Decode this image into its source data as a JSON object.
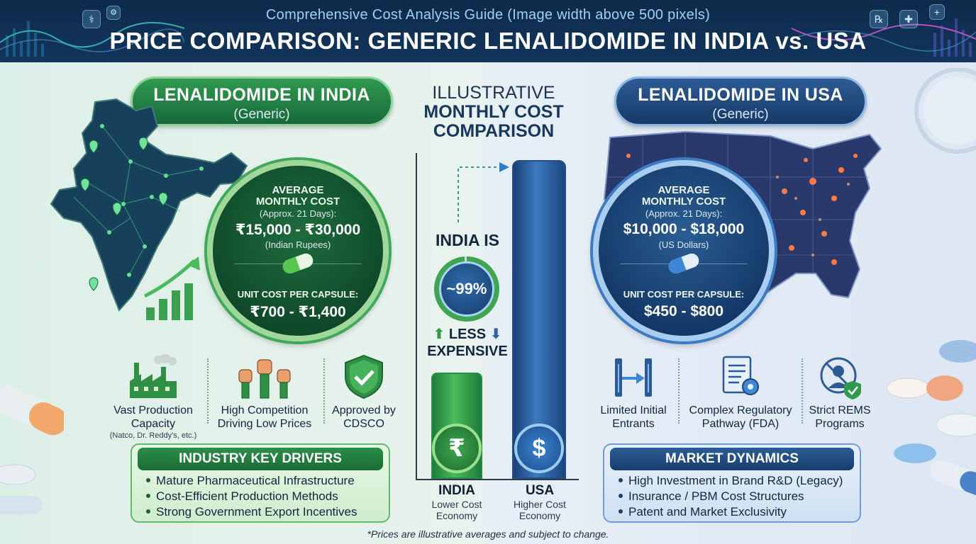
{
  "header": {
    "subtitle": "Comprehensive Cost Analysis Guide (Image width above 500 pixels)",
    "title": "PRICE COMPARISON: GENERIC LENALIDOMIDE IN INDIA vs. USA"
  },
  "india": {
    "pill_title": "LENALIDOMIDE IN INDIA",
    "pill_sub": "(Generic)",
    "circle": {
      "label_line1": "AVERAGE",
      "label_line2": "MONTHLY COST",
      "approx": "(Approx. 21 Days):",
      "price": "₹15,000 - ₹30,000",
      "currency": "(Indian Rupees)",
      "unit_label": "UNIT COST PER CAPSULE:",
      "unit_price": "₹700 - ₹1,400"
    },
    "features": [
      {
        "icon": "factory-icon",
        "label_line1": "Vast Production",
        "label_line2": "Capacity",
        "small": "(Natco, Dr. Reddy's, etc.)"
      },
      {
        "icon": "raised-fists-icon",
        "label_line1": "High Competition",
        "label_line2": "Driving Low Prices"
      },
      {
        "icon": "shield-check-icon",
        "label_line1": "Approved by",
        "label_line2": "CDSCO"
      }
    ],
    "box": {
      "title": "INDUSTRY KEY DRIVERS",
      "items": [
        "Mature Pharmaceutical Infrastructure",
        "Cost-Efficient Production Methods",
        "Strong Government Export Incentives"
      ]
    },
    "accent": "#2f9a4f"
  },
  "usa": {
    "pill_title": "LENALIDOMIDE IN USA",
    "pill_sub": "(Generic)",
    "circle": {
      "label_line1": "AVERAGE",
      "label_line2": "MONTHLY COST",
      "approx": "(Approx. 21 Days):",
      "price": "$10,000 - $18,000",
      "currency": "(US Dollars)",
      "unit_label": "UNIT COST PER CAPSULE:",
      "unit_price": "$450 - $800"
    },
    "features": [
      {
        "icon": "gate-barrier-icon",
        "label_line1": "Limited Initial",
        "label_line2": "Entrants"
      },
      {
        "icon": "regulatory-document-icon",
        "label_line1": "Complex Regulatory",
        "label_line2": "Pathway (FDA)"
      },
      {
        "icon": "restricted-person-icon",
        "label_line1": "Strict REMS",
        "label_line2": "Programs"
      }
    ],
    "box": {
      "title": "MARKET DYNAMICS",
      "items": [
        "High Investment in Brand R&D (Legacy)",
        "Insurance / PBM Cost Structures",
        "Patent and Market Exclusivity"
      ]
    },
    "accent": "#2c5b94"
  },
  "center": {
    "title_line1": "ILLUSTRATIVE",
    "title_line2": "MONTHLY COST",
    "title_line3": "COMPARISON",
    "india_is": "INDIA IS",
    "percent": "~99%",
    "less_line1": "LESS",
    "less_line2": "EXPENSIVE",
    "india_bar": {
      "name": "INDIA",
      "sub_line1": "Lower Cost",
      "sub_line2": "Economy",
      "symbol": "₹"
    },
    "usa_bar": {
      "name": "USA",
      "sub_line1": "Higher Cost",
      "sub_line2": "Economy",
      "symbol": "$"
    }
  },
  "footnote": "*Prices are illustrative averages and subject to change."
}
